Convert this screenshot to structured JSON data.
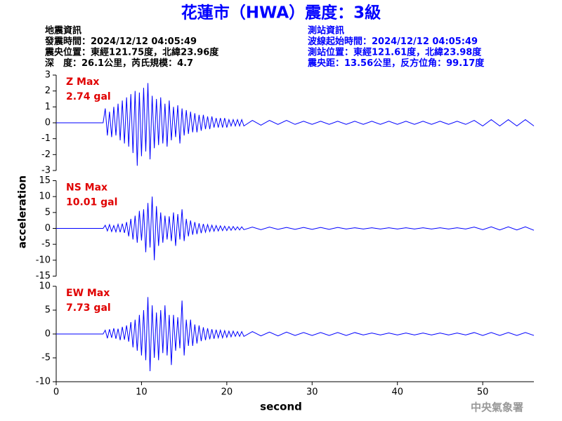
{
  "header": {
    "title": "花蓮市（HWA）震度：3級",
    "left": [
      "地震資訊",
      "發震時間：2024/12/12 04:05:49",
      "震央位置：東經121.75度，北緯23.96度",
      "深　度：26.1公里，芮氏規模：4.7"
    ],
    "right": [
      "測站資訊",
      "波線起始時間：2024/12/12 04:05:49",
      "測站位置：東經121.61度，北緯23.98度",
      "震央距：13.56公里，反方位角：99.17度"
    ]
  },
  "ylabel": "acceleration",
  "time": {
    "xlabel": "second",
    "xlim": [
      0,
      56
    ],
    "xticks": [
      0,
      10,
      20,
      30,
      40,
      50
    ],
    "x": [
      0,
      5.5,
      5.75,
      6,
      6.25,
      6.5,
      6.75,
      7,
      7.25,
      7.5,
      7.75,
      8,
      8.25,
      8.5,
      8.75,
      9,
      9.25,
      9.5,
      9.75,
      10,
      10.25,
      10.5,
      10.75,
      11,
      11.25,
      11.5,
      11.75,
      12,
      12.25,
      12.5,
      12.75,
      13,
      13.25,
      13.5,
      13.75,
      14,
      14.25,
      14.5,
      14.75,
      15,
      15.25,
      15.5,
      15.75,
      16,
      16.25,
      16.5,
      16.75,
      17,
      17.25,
      17.5,
      17.75,
      18,
      18.25,
      18.5,
      18.75,
      19,
      19.25,
      19.5,
      19.75,
      20,
      20.25,
      20.5,
      20.75,
      21,
      21.25,
      21.5,
      21.75,
      22,
      23,
      24,
      25,
      26,
      27,
      28,
      29,
      30,
      31,
      32,
      33,
      34,
      35,
      36,
      37,
      38,
      39,
      40,
      41,
      42,
      43,
      44,
      45,
      46,
      47,
      48,
      49,
      50,
      51,
      52,
      53,
      54,
      55,
      56
    ]
  },
  "chart_data": [
    {
      "type": "line",
      "label": "Z Max",
      "max_label": "2.74 gal",
      "color": "#0000ff",
      "ylim": [
        -3,
        3
      ],
      "yticks": [
        -3,
        -2,
        -1,
        0,
        1,
        2,
        3
      ],
      "values": [
        0,
        0,
        0.9,
        -0.8,
        0.7,
        -0.9,
        1.0,
        -0.8,
        1.2,
        -1.1,
        1.4,
        -1.3,
        1.6,
        -1.5,
        1.8,
        -1.9,
        2.0,
        -2.7,
        1.9,
        -2.1,
        2.2,
        -1.8,
        2.5,
        -2.3,
        1.7,
        -1.6,
        1.5,
        -1.4,
        1.6,
        -1.3,
        1.2,
        -1.5,
        1.4,
        -1.1,
        1.0,
        -0.9,
        1.1,
        -1.3,
        0.9,
        -0.8,
        0.8,
        -0.7,
        0.7,
        -0.6,
        0.6,
        -0.6,
        0.5,
        -0.5,
        0.5,
        -0.4,
        0.4,
        -0.4,
        0.4,
        -0.3,
        0.3,
        -0.3,
        0.3,
        -0.3,
        0.3,
        -0.3,
        0.2,
        -0.2,
        0.2,
        -0.2,
        0.2,
        -0.2,
        0.2,
        -0.2,
        0.15,
        -0.15,
        0.15,
        -0.1,
        0.15,
        -0.1,
        0.1,
        -0.1,
        0.1,
        -0.1,
        0.1,
        -0.1,
        0.1,
        -0.1,
        0.1,
        -0.1,
        0.1,
        -0.1,
        0.1,
        -0.1,
        0.1,
        -0.1,
        0.1,
        -0.1,
        0.1,
        -0.1,
        0.15,
        -0.2,
        0.2,
        -0.2,
        0.2,
        -0.2,
        0.2,
        -0.2
      ]
    },
    {
      "type": "line",
      "label": "NS Max",
      "max_label": "10.01 gal",
      "color": "#0000ff",
      "ylim": [
        -15,
        15
      ],
      "yticks": [
        -15,
        -10,
        -5,
        0,
        5,
        10,
        15
      ],
      "values": [
        0,
        0,
        1.0,
        -0.8,
        1.2,
        -1.0,
        0.9,
        -1.1,
        1.3,
        -1.2,
        1.5,
        -1.4,
        2.0,
        -2.5,
        3.0,
        -3.5,
        4.0,
        -4.5,
        5.5,
        -3.8,
        6.0,
        -7.5,
        8.0,
        -6.0,
        10.0,
        -10.0,
        7.0,
        -5.5,
        5.0,
        -4.5,
        4.0,
        -3.5,
        3.8,
        -4.0,
        5.0,
        -5.5,
        4.5,
        -3.5,
        6.0,
        -4.0,
        3.0,
        -2.5,
        2.5,
        -2.0,
        2.0,
        -1.8,
        1.6,
        -1.5,
        1.4,
        -1.2,
        1.2,
        -1.0,
        1.0,
        -0.9,
        0.9,
        -0.8,
        0.8,
        -0.7,
        0.7,
        -0.7,
        0.6,
        -0.6,
        0.6,
        -0.5,
        0.5,
        -0.5,
        0.5,
        -0.4,
        0.4,
        -0.4,
        0.4,
        -0.3,
        0.3,
        -0.3,
        0.3,
        -0.3,
        0.3,
        -0.3,
        0.3,
        -0.2,
        0.2,
        -0.2,
        0.2,
        -0.2,
        0.2,
        -0.2,
        0.2,
        -0.2,
        0.2,
        -0.2,
        0.2,
        -0.2,
        0.2,
        -0.2,
        0.4,
        -0.4,
        0.5,
        -0.5,
        0.5,
        -0.5,
        0.5,
        -0.6
      ]
    },
    {
      "type": "line",
      "label": "EW Max",
      "max_label": "7.73 gal",
      "color": "#0000ff",
      "ylim": [
        -10,
        10
      ],
      "yticks": [
        -10,
        -5,
        0,
        5,
        10
      ],
      "values": [
        0,
        0,
        0.8,
        -0.9,
        1.0,
        -0.8,
        1.2,
        -1.0,
        1.1,
        -1.3,
        1.5,
        -1.2,
        1.8,
        -1.6,
        2.5,
        -2.8,
        3.0,
        -3.5,
        4.0,
        -4.5,
        5.0,
        -5.5,
        7.73,
        -7.8,
        6.0,
        -5.0,
        4.5,
        -5.5,
        5.0,
        -4.0,
        6.0,
        -4.5,
        4.0,
        -6.5,
        4.0,
        -3.5,
        3.5,
        -3.0,
        7.0,
        -4.5,
        3.0,
        -2.5,
        3.0,
        -2.5,
        2.0,
        -2.0,
        1.8,
        -1.5,
        1.4,
        -1.3,
        1.2,
        -1.1,
        1.0,
        -1.0,
        0.9,
        -0.8,
        0.8,
        -0.8,
        0.7,
        -0.7,
        0.6,
        -0.6,
        0.6,
        -0.5,
        0.5,
        -0.5,
        0.5,
        -0.5,
        0.5,
        -0.4,
        0.4,
        -0.4,
        0.4,
        -0.3,
        0.3,
        -0.3,
        0.3,
        -0.3,
        0.3,
        -0.3,
        0.3,
        -0.2,
        0.2,
        -0.2,
        0.2,
        -0.2,
        0.2,
        -0.2,
        0.2,
        -0.2,
        0.2,
        -0.2,
        0.2,
        -0.2,
        0.3,
        -0.3,
        0.3,
        -0.3,
        0.3,
        -0.3,
        0.3,
        -0.3
      ]
    }
  ],
  "footer": "中央氣象署"
}
